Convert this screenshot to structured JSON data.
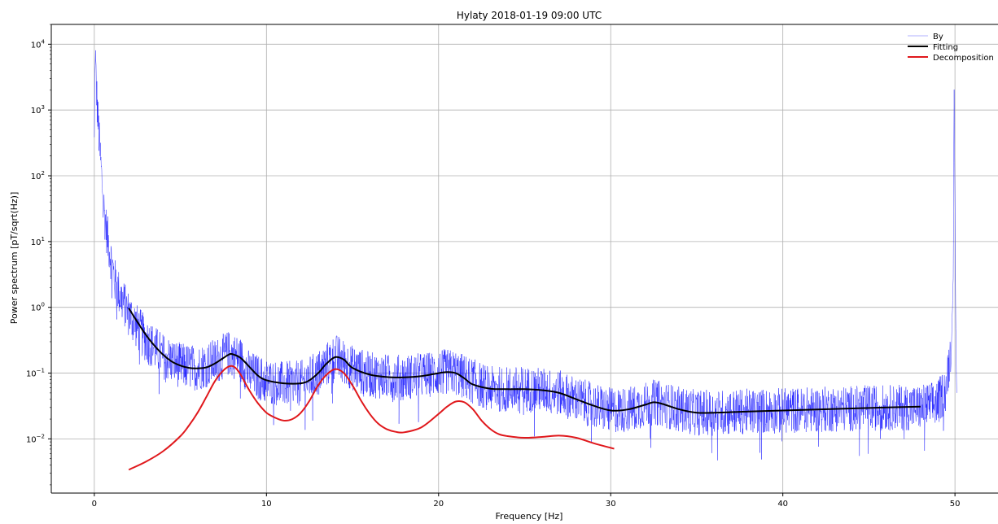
{
  "chart_data": {
    "type": "line",
    "title": "Hylaty 2018-01-19 09:00 UTC",
    "xlabel": "Frequency [Hz]",
    "ylabel": "Power spectrum [pT/sqrt(Hz)]",
    "xlim": [
      -2.5,
      52.5
    ],
    "ylim": [
      0.0015,
      20000
    ],
    "yscale": "log",
    "grid": true,
    "legend_position": "top-right",
    "x_ticks": [
      0,
      10,
      20,
      30,
      40,
      50
    ],
    "x_tick_labels": [
      "0",
      "10",
      "20",
      "30",
      "40",
      "50"
    ],
    "y_ticks": [
      0.01,
      0.1,
      1,
      10,
      100,
      1000,
      10000
    ],
    "y_tick_labels": [
      {
        "base": "10",
        "exp": "−2"
      },
      {
        "base": "10",
        "exp": "−1"
      },
      {
        "base": "10",
        "exp": "0"
      },
      {
        "base": "10",
        "exp": "1"
      },
      {
        "base": "10",
        "exp": "2"
      },
      {
        "base": "10",
        "exp": "3"
      },
      {
        "base": "10",
        "exp": "4"
      }
    ],
    "series": [
      {
        "name": "By",
        "color": "#0000ff",
        "style": "thin-noisy",
        "x": [
          0.0,
          0.05,
          0.1,
          0.15,
          0.2,
          0.3,
          0.4,
          0.5,
          0.6,
          0.8,
          1.0,
          1.2,
          1.5,
          2.0,
          2.5,
          3.0,
          3.5,
          4.0,
          5.0,
          6.0,
          7.0,
          7.8,
          8.5,
          9.0,
          10.0,
          11.0,
          12.0,
          13.0,
          14.0,
          15.0,
          16.0,
          17.0,
          18.0,
          19.0,
          20.0,
          20.5,
          21.0,
          22.0,
          23.0,
          24.0,
          25.0,
          26.0,
          27.0,
          28.0,
          29.0,
          30.0,
          31.0,
          32.0,
          32.5,
          33.0,
          34.0,
          35.0,
          36.0,
          38.0,
          40.0,
          42.0,
          44.0,
          46.0,
          48.0,
          49.0,
          49.5,
          49.8,
          49.9,
          49.95,
          50.0,
          50.05,
          50.1
        ],
        "y": [
          300,
          8000,
          3000,
          1500,
          800,
          300,
          120,
          50,
          25,
          10,
          5,
          2.5,
          1.5,
          0.8,
          0.5,
          0.32,
          0.24,
          0.18,
          0.13,
          0.12,
          0.15,
          0.2,
          0.16,
          0.1,
          0.075,
          0.068,
          0.07,
          0.1,
          0.18,
          0.12,
          0.095,
          0.087,
          0.087,
          0.092,
          0.1,
          0.105,
          0.1,
          0.075,
          0.057,
          0.057,
          0.057,
          0.055,
          0.05,
          0.04,
          0.032,
          0.027,
          0.028,
          0.033,
          0.036,
          0.034,
          0.028,
          0.025,
          0.025,
          0.026,
          0.027,
          0.028,
          0.029,
          0.03,
          0.03,
          0.035,
          0.06,
          0.3,
          3,
          2200,
          50,
          0.5,
          0.05
        ]
      },
      {
        "name": "Fitting",
        "color": "#000000",
        "x": [
          2.0,
          2.5,
          3.0,
          3.5,
          4.0,
          4.5,
          5.0,
          5.5,
          6.0,
          6.5,
          7.0,
          7.5,
          7.8,
          8.0,
          8.5,
          9.0,
          9.5,
          10.0,
          11.0,
          12.0,
          12.5,
          13.0,
          13.5,
          14.0,
          14.5,
          15.0,
          16.0,
          17.0,
          18.0,
          19.0,
          20.0,
          20.5,
          21.0,
          21.5,
          22.0,
          23.0,
          24.0,
          25.0,
          26.0,
          27.0,
          28.0,
          29.0,
          30.0,
          31.0,
          32.0,
          32.5,
          33.0,
          34.0,
          35.0,
          36.0,
          38.0,
          40.0,
          42.0,
          44.0,
          46.0,
          48.0
        ],
        "y": [
          0.97,
          0.6,
          0.38,
          0.26,
          0.19,
          0.15,
          0.13,
          0.12,
          0.118,
          0.122,
          0.14,
          0.17,
          0.19,
          0.195,
          0.17,
          0.125,
          0.092,
          0.078,
          0.07,
          0.07,
          0.078,
          0.1,
          0.14,
          0.175,
          0.16,
          0.12,
          0.095,
          0.087,
          0.086,
          0.09,
          0.1,
          0.104,
          0.1,
          0.083,
          0.067,
          0.058,
          0.057,
          0.057,
          0.055,
          0.05,
          0.04,
          0.032,
          0.027,
          0.028,
          0.033,
          0.036,
          0.034,
          0.028,
          0.025,
          0.025,
          0.026,
          0.027,
          0.028,
          0.029,
          0.03,
          0.031
        ]
      },
      {
        "name": "Decomposition",
        "color": "#e0181c",
        "x": [
          2.0,
          3.0,
          4.0,
          5.0,
          5.5,
          6.0,
          6.5,
          7.0,
          7.5,
          7.9,
          8.2,
          8.5,
          9.0,
          9.5,
          10.0,
          10.5,
          11.0,
          11.5,
          12.0,
          12.5,
          13.0,
          13.5,
          14.0,
          14.5,
          15.0,
          15.5,
          16.0,
          16.5,
          17.0,
          17.5,
          18.0,
          19.0,
          20.0,
          20.5,
          21.0,
          21.5,
          22.0,
          22.5,
          23.0,
          23.5,
          24.0,
          25.0,
          26.0,
          27.0,
          28.0,
          29.0,
          30.0,
          30.2
        ],
        "y": [
          0.0034,
          0.0045,
          0.0065,
          0.011,
          0.016,
          0.025,
          0.043,
          0.075,
          0.11,
          0.128,
          0.12,
          0.095,
          0.055,
          0.035,
          0.025,
          0.021,
          0.019,
          0.02,
          0.025,
          0.038,
          0.065,
          0.095,
          0.115,
          0.1,
          0.065,
          0.038,
          0.024,
          0.017,
          0.014,
          0.0128,
          0.0126,
          0.015,
          0.024,
          0.031,
          0.037,
          0.036,
          0.028,
          0.019,
          0.0142,
          0.0118,
          0.011,
          0.0104,
          0.0107,
          0.0112,
          0.0104,
          0.0086,
          0.0073,
          0.0071
        ]
      }
    ]
  }
}
